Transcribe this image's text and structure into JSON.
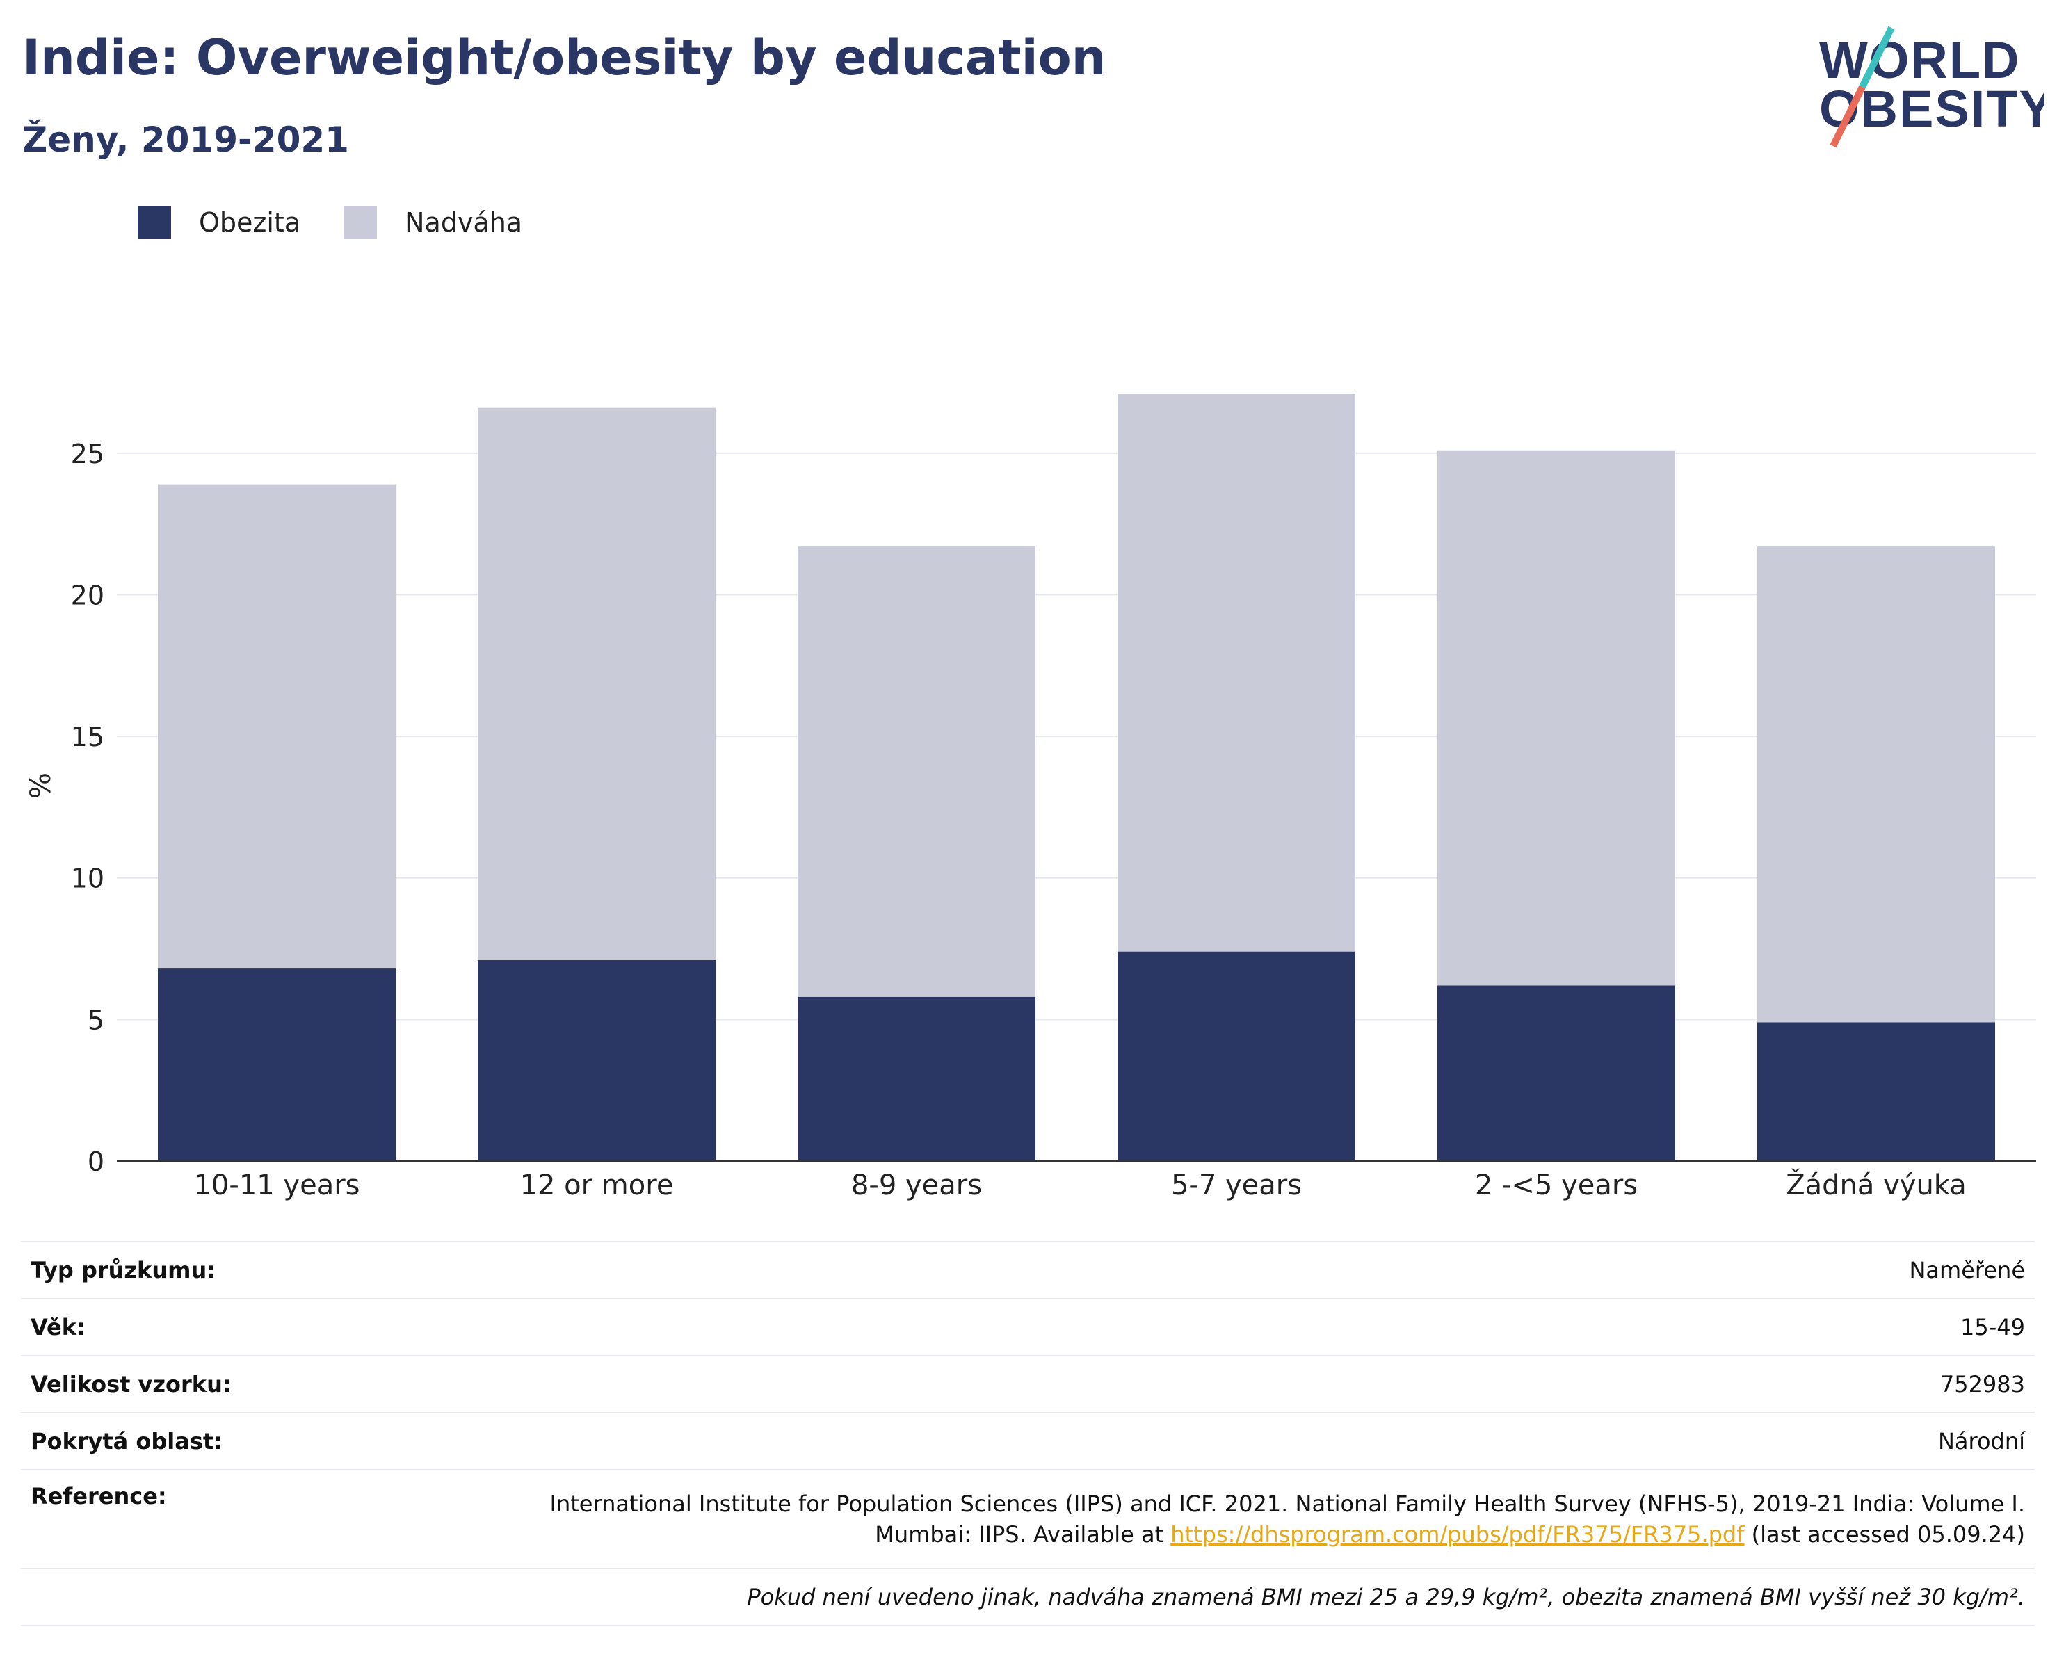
{
  "header": {
    "title": "Indie: Overweight/obesity by education",
    "subtitle": "Ženy, 2019-2021"
  },
  "logo": {
    "text_line1": "WORLD",
    "text_line2": "OBESITY",
    "color_text": "#2a3663",
    "color_slash_top": "#3bbfbf",
    "color_slash_bottom": "#ea6a5a"
  },
  "legend": {
    "items": [
      {
        "label": "Obezita",
        "color": "#2a3663"
      },
      {
        "label": "Nadváha",
        "color": "#c9ccd8"
      }
    ]
  },
  "chart_data": {
    "type": "bar",
    "stacked": true,
    "categories": [
      "10-11 years",
      "12 or more",
      "8-9 years",
      "5-7 years",
      "2 -<5 years",
      "Žádná výuka"
    ],
    "series": [
      {
        "name": "Obezita",
        "color": "#2a3663",
        "values": [
          6.8,
          7.1,
          5.8,
          7.4,
          6.2,
          4.9
        ]
      },
      {
        "name": "Nadváha",
        "color": "#c9ccd8",
        "values": [
          17.1,
          19.5,
          15.9,
          19.7,
          18.9,
          16.8
        ]
      }
    ],
    "ylabel": "%",
    "xlabel": "",
    "ylim": [
      0,
      27.5
    ],
    "yticks": [
      0,
      5,
      10,
      15,
      20,
      25
    ],
    "grid": true,
    "legend_position": "top-left"
  },
  "info": {
    "rows": [
      {
        "label": "Typ průzkumu:",
        "value": "Naměřené"
      },
      {
        "label": "Věk:",
        "value": "15-49"
      },
      {
        "label": "Velikost vzorku:",
        "value": "752983"
      },
      {
        "label": "Pokrytá oblast:",
        "value": "Národní"
      }
    ],
    "reference": {
      "label": "Reference:",
      "line1": "International Institute for Population Sciences (IIPS) and ICF. 2021. National Family Health Survey (NFHS-5), 2019-21 India: Volume I.",
      "line2_prefix": "Mumbai: IIPS. Available at ",
      "link": "https://dhsprogram.com/pubs/pdf/FR375/FR375.pdf",
      "line2_suffix": " (last accessed 05.09.24)"
    },
    "note": "Pokud není uvedeno jinak, nadváha znamená BMI mezi 25 a 29,9 kg/m², obezita znamená BMI vyšší než 30 kg/m²."
  }
}
